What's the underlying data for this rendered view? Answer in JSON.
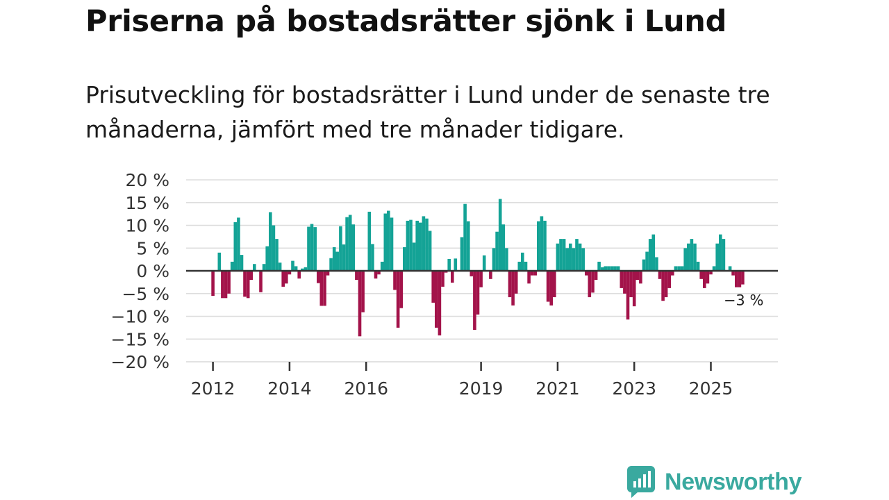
{
  "title": "Priserna på bostadsrätter sjönk i Lund",
  "subtitle": "Prisutveckling för bostadsrätter i Lund under de senaste tre månaderna, jämfört med tre månader tidigare.",
  "colors": {
    "positive": "#14a396",
    "negative": "#a3134a",
    "grid": "#dddddd",
    "zero": "#333333",
    "brand": "#3aa99f"
  },
  "logo": {
    "name": "Newsworthy",
    "icon": "bar-chart-speech-bubble-icon"
  },
  "chart_data": {
    "type": "bar",
    "title": "Priserna på bostadsrätter sjönk i Lund",
    "xlabel": "",
    "ylabel": "",
    "ylim": [
      -20,
      20
    ],
    "grid": true,
    "y_ticks": [
      "20 %",
      "15 %",
      "10 %",
      "5 %",
      "0 %",
      "−5 %",
      "−10 %",
      "−15 %",
      "−20 %"
    ],
    "y_tick_values": [
      20,
      15,
      10,
      5,
      0,
      -5,
      -10,
      -15,
      -20
    ],
    "x_ticks": [
      "2012",
      "2014",
      "2016",
      "2019",
      "2021",
      "2023",
      "2025"
    ],
    "x_tick_years": [
      2012,
      2014,
      2016,
      2019,
      2021,
      2023,
      2025
    ],
    "x_range": [
      2011.3,
      2026.75
    ],
    "end_label": "−3 %",
    "unit": "%",
    "series": [
      {
        "name": "Prisutveckling",
        "x": [
          2012.0,
          2012.167,
          2012.25,
          2012.333,
          2012.417,
          2012.5,
          2012.583,
          2012.667,
          2012.75,
          2012.833,
          2012.917,
          2013.0,
          2013.083,
          2013.25,
          2013.333,
          2013.417,
          2013.5,
          2013.583,
          2013.667,
          2013.75,
          2013.833,
          2013.917,
          2014.0,
          2014.083,
          2014.167,
          2014.25,
          2014.333,
          2014.417,
          2014.5,
          2014.583,
          2014.667,
          2014.75,
          2014.833,
          2014.917,
          2015.0,
          2015.083,
          2015.167,
          2015.25,
          2015.333,
          2015.417,
          2015.5,
          2015.583,
          2015.667,
          2015.75,
          2015.833,
          2015.917,
          2016.083,
          2016.167,
          2016.25,
          2016.333,
          2016.417,
          2016.5,
          2016.583,
          2016.667,
          2016.75,
          2016.833,
          2016.917,
          2017.0,
          2017.083,
          2017.167,
          2017.25,
          2017.333,
          2017.417,
          2017.5,
          2017.583,
          2017.667,
          2017.75,
          2017.833,
          2017.917,
          2018.0,
          2018.083,
          2018.167,
          2018.25,
          2018.333,
          2018.5,
          2018.583,
          2018.667,
          2018.75,
          2018.833,
          2018.917,
          2019.0,
          2019.083,
          2019.25,
          2019.333,
          2019.417,
          2019.5,
          2019.583,
          2019.667,
          2019.75,
          2019.833,
          2019.917,
          2020.0,
          2020.083,
          2020.167,
          2020.25,
          2020.333,
          2020.417,
          2020.5,
          2020.583,
          2020.667,
          2020.75,
          2020.833,
          2020.917,
          2021.0,
          2021.083,
          2021.167,
          2021.25,
          2021.333,
          2021.417,
          2021.5,
          2021.583,
          2021.667,
          2021.75,
          2021.833,
          2021.917,
          2022.0,
          2022.083,
          2022.167,
          2022.25,
          2022.333,
          2022.417,
          2022.5,
          2022.583,
          2022.667,
          2022.75,
          2022.833,
          2022.917,
          2023.0,
          2023.083,
          2023.167,
          2023.25,
          2023.333,
          2023.417,
          2023.5,
          2023.583,
          2023.667,
          2023.75,
          2023.833,
          2023.917,
          2024.0,
          2024.083,
          2024.167,
          2024.25,
          2024.333,
          2024.417,
          2024.5,
          2024.583,
          2024.667,
          2024.75,
          2024.833,
          2024.917,
          2025.0,
          2025.083,
          2025.167,
          2025.25,
          2025.333,
          2025.5,
          2025.583,
          2025.667,
          2025.75,
          2025.833
        ],
        "values": [
          -5.5,
          4.0,
          -6.0,
          -6.0,
          -5.0,
          2.0,
          10.7,
          11.7,
          3.5,
          -5.7,
          -6.0,
          -2.0,
          1.5,
          -4.7,
          1.5,
          5.4,
          12.9,
          10.0,
          7.0,
          1.8,
          -3.5,
          -2.8,
          -0.8,
          2.2,
          1.0,
          -1.7,
          0.5,
          0.8,
          9.7,
          10.3,
          9.6,
          -2.7,
          -7.7,
          -7.7,
          -1.0,
          2.8,
          5.2,
          4.2,
          9.8,
          5.8,
          11.8,
          12.3,
          10.2,
          -2.0,
          -14.4,
          -9.1,
          13.0,
          5.9,
          -1.7,
          -0.8,
          2.0,
          12.6,
          13.2,
          11.7,
          -4.2,
          -12.5,
          -8.2,
          5.2,
          11.0,
          11.2,
          6.2,
          11.0,
          10.6,
          12.0,
          11.5,
          8.8,
          -7.0,
          -12.5,
          -14.2,
          -3.5,
          -0.4,
          2.6,
          -2.6,
          2.7,
          7.4,
          14.7,
          10.9,
          -1.2,
          -13.0,
          -9.6,
          -3.6,
          3.4,
          -1.8,
          5.0,
          8.6,
          15.8,
          10.2,
          5.0,
          -5.8,
          -7.6,
          -5.0,
          2.0,
          4.0,
          2.0,
          -2.8,
          -1.0,
          -1.0,
          10.9,
          12.0,
          11.0,
          -6.8,
          -7.6,
          -5.8,
          6.0,
          7.0,
          7.0,
          5.0,
          6.0,
          5.0,
          7.0,
          6.0,
          5.0,
          -1.0,
          -5.8,
          -4.8,
          -2.0,
          2.0,
          0.8,
          1.0,
          1.0,
          1.0,
          1.0,
          1.0,
          -3.8,
          -5.0,
          -10.7,
          -5.8,
          -7.8,
          -2.0,
          -2.8,
          2.5,
          4.2,
          7.0,
          8.0,
          3.0,
          -1.8,
          -6.6,
          -5.8,
          -3.8,
          -1.0,
          1.0,
          1.0,
          1.0,
          5.0,
          6.0,
          7.0,
          6.0,
          2.0,
          -1.8,
          -3.8,
          -2.8,
          -0.8,
          1.0,
          6.0,
          8.0,
          7.0,
          1.0,
          -1.0,
          -3.6,
          -3.6,
          -3.0
        ]
      }
    ]
  }
}
